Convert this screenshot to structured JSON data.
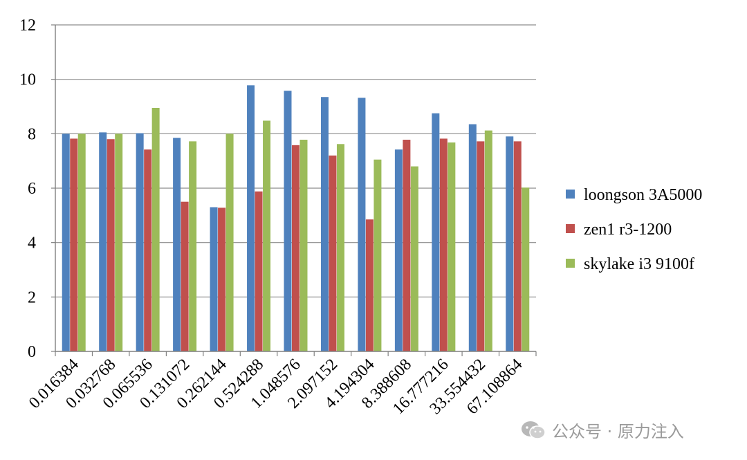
{
  "chart_data": {
    "type": "bar",
    "categories": [
      "0.016384",
      "0.032768",
      "0.065536",
      "0.131072",
      "0.262144",
      "0.524288",
      "1.048576",
      "2.097152",
      "4.194304",
      "8.388608",
      "16.777216",
      "33.554432",
      "67.108864"
    ],
    "series": [
      {
        "name": "loongson 3A5000",
        "color": "#4f81bd",
        "values": [
          8.0,
          8.05,
          8.02,
          7.85,
          5.3,
          9.78,
          9.58,
          9.35,
          9.32,
          7.42,
          8.75,
          8.35,
          7.9
        ]
      },
      {
        "name": "zen1 r3-1200",
        "color": "#c0504d",
        "values": [
          7.82,
          7.8,
          7.42,
          5.5,
          5.28,
          5.88,
          7.58,
          7.2,
          4.85,
          7.78,
          7.82,
          7.72,
          7.72
        ]
      },
      {
        "name": "skylake i3 9100f",
        "color": "#9bbb59",
        "values": [
          8.0,
          8.0,
          8.95,
          7.72,
          8.0,
          8.48,
          7.78,
          7.62,
          7.05,
          6.8,
          7.68,
          8.12,
          6.02
        ]
      }
    ],
    "y_ticks": [
      "0",
      "2",
      "4",
      "6",
      "8",
      "10",
      "12"
    ],
    "ylim": [
      0,
      12
    ],
    "grid": true,
    "legend_position": "right"
  },
  "watermark": {
    "icon": "wechat-icon",
    "text": "公众号 · 原力注入"
  }
}
